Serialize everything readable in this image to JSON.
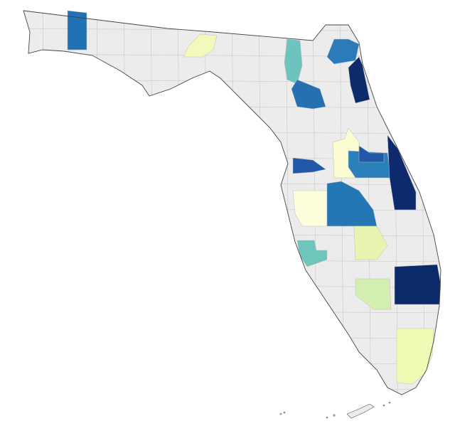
{
  "map": {
    "base_color": "#ececec",
    "region_colors": [
      "#2171b5",
      "#f2f9bb",
      "#6dc4be",
      "#2b7bba",
      "#0b2b6b",
      "#2470b0",
      "#fbfdd0",
      "#2a80bb",
      "#2259a6",
      "#0c2a6c",
      "#2258a8",
      "#fdfedb",
      "#2377b4",
      "#e8f5b0",
      "#6ec5bc",
      "#0b2a6a",
      "#d4eeb1",
      "#effab5"
    ]
  }
}
